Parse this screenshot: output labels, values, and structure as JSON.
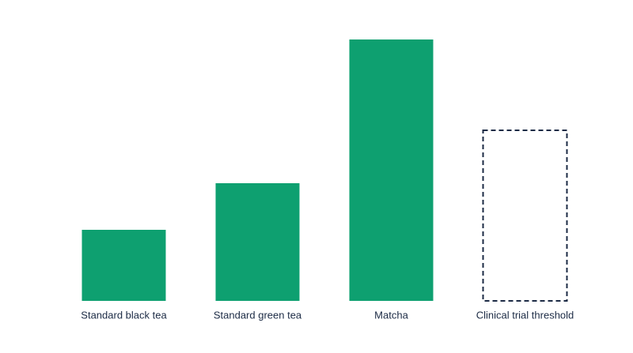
{
  "chart_data": {
    "type": "bar",
    "categories": [
      "Standard black tea",
      "Standard green tea",
      "Matcha",
      "Clinical trial threshold"
    ],
    "values": [
      90,
      149,
      331,
      216
    ],
    "colors": [
      "#0ea070",
      "#0ea070",
      "#0ea070",
      "#1c2b45"
    ],
    "styles": [
      "solid",
      "solid",
      "solid",
      "dashed"
    ],
    "ylim": [
      0,
      381
    ]
  }
}
